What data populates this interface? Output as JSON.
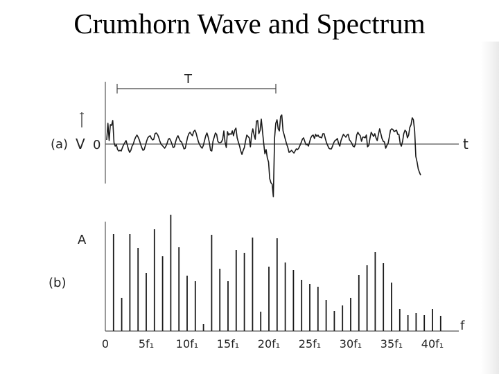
{
  "title": "Crumhorn Wave and Spectrum",
  "chart_data": [
    {
      "type": "line",
      "panel_label": "(a)",
      "ylabel": "V",
      "xlabel": "t",
      "zero_label": "0",
      "period_label": "T",
      "y": [
        6,
        30,
        5,
        28,
        27,
        34,
        2,
        -3,
        -1,
        -8,
        -10,
        -9,
        -10,
        -5,
        -1,
        2,
        5,
        -1,
        -8,
        -12,
        -9,
        -3,
        0,
        6,
        10,
        13,
        10,
        6,
        0,
        -5,
        -9,
        -8,
        -2,
        4,
        9,
        11,
        12,
        8,
        6,
        7,
        15,
        16,
        14,
        10,
        4,
        0,
        -2,
        -4,
        -6,
        -3,
        1,
        7,
        8,
        5,
        0,
        -5,
        -4,
        3,
        9,
        12,
        8,
        4,
        3,
        -2,
        -7,
        -6,
        2,
        10,
        15,
        17,
        14,
        12,
        18,
        20,
        16,
        9,
        3,
        -1,
        -4,
        -6,
        -2,
        5,
        12,
        16,
        10,
        2,
        -9,
        -10,
        4,
        10,
        16,
        14,
        4,
        2,
        2,
        3,
        7,
        19,
        3,
        -5,
        18,
        13,
        15,
        14,
        19,
        12,
        20,
        23,
        9,
        3,
        -3,
        -10,
        -15,
        -9,
        -5,
        5,
        13,
        11,
        9,
        -4,
        14,
        22,
        13,
        7,
        33,
        34,
        15,
        20,
        36,
        18,
        1,
        -14,
        -8,
        -20,
        -26,
        -50,
        -56,
        -58,
        -76,
        9,
        30,
        35,
        22,
        19,
        40,
        42,
        19,
        13,
        6,
        0,
        -5,
        -12,
        -11,
        -9,
        -11,
        -13,
        -10,
        -7,
        -8,
        -6,
        -2,
        2,
        7,
        9,
        4,
        -1,
        0,
        -3,
        3,
        9,
        12,
        13,
        8,
        14,
        11,
        13,
        10,
        10,
        9,
        15,
        15,
        8,
        2,
        -2,
        -6,
        -7,
        -7,
        -3,
        2,
        5,
        6,
        8,
        1,
        -3,
        5,
        10,
        14,
        12,
        10,
        13,
        14,
        6,
        4,
        1,
        -3,
        -4,
        0,
        13,
        17,
        14,
        12,
        4,
        10,
        10,
        9,
        13,
        -4,
        -2,
        8,
        17,
        14,
        11,
        15,
        9,
        5,
        14,
        22,
        15,
        8,
        4,
        3,
        -6,
        -2,
        1,
        10,
        20,
        22,
        21,
        18,
        19,
        20,
        14,
        14,
        1,
        -3,
        4,
        15,
        20,
        18,
        9,
        13,
        24,
        28,
        38,
        35,
        19,
        -18,
        -26,
        -36,
        -41,
        -45
      ]
    },
    {
      "type": "bar",
      "panel_label": "(b)",
      "ylabel": "A",
      "xlabel": "f",
      "tick_labels": [
        "0",
        "5f₁",
        "10f₁",
        "15f₁",
        "20f₁",
        "25f₁",
        "30f₁",
        "35f₁",
        "40f₁"
      ],
      "harmonics": [
        1,
        2,
        3,
        4,
        5,
        6,
        7,
        8,
        9,
        10,
        11,
        12,
        13,
        14,
        15,
        16,
        17,
        18,
        19,
        20,
        21,
        22,
        23,
        24,
        25,
        26,
        27,
        28,
        29,
        30,
        31,
        32,
        33,
        34,
        35,
        36,
        37,
        38,
        39,
        40,
        41
      ],
      "values": [
        140,
        48,
        140,
        120,
        84,
        147,
        108,
        168,
        121,
        80,
        72,
        10,
        139,
        90,
        72,
        117,
        113,
        135,
        28,
        93,
        134,
        99,
        88,
        74,
        68,
        64,
        45,
        29,
        37,
        48,
        81,
        95,
        114,
        98,
        70,
        32,
        23,
        26,
        23,
        32,
        22
      ]
    }
  ]
}
